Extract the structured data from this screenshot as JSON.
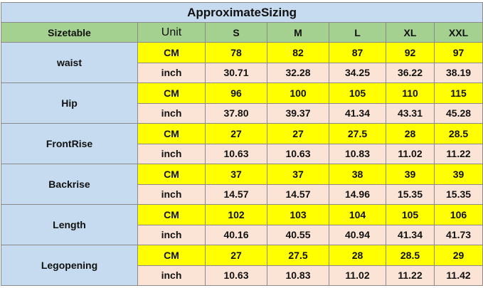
{
  "title": "ApproximateSizing",
  "table": {
    "header": [
      "Sizetable",
      "Unit",
      "S",
      "M",
      "L",
      "XL",
      "XXL"
    ],
    "rows": [
      {
        "label": "waist",
        "lines": [
          {
            "unit": "CM",
            "values": [
              "78",
              "82",
              "87",
              "92",
              "97"
            ]
          },
          {
            "unit": "inch",
            "values": [
              "30.71",
              "32.28",
              "34.25",
              "36.22",
              "38.19"
            ]
          }
        ]
      },
      {
        "label": "Hip",
        "lines": [
          {
            "unit": "CM",
            "values": [
              "96",
              "100",
              "105",
              "110",
              "115"
            ]
          },
          {
            "unit": "inch",
            "values": [
              "37.80",
              "39.37",
              "41.34",
              "43.31",
              "45.28"
            ]
          }
        ]
      },
      {
        "label": "FrontRise",
        "lines": [
          {
            "unit": "CM",
            "values": [
              "27",
              "27",
              "27.5",
              "28",
              "28.5"
            ]
          },
          {
            "unit": "inch",
            "values": [
              "10.63",
              "10.63",
              "10.83",
              "11.02",
              "11.22"
            ]
          }
        ]
      },
      {
        "label": "Backrise",
        "lines": [
          {
            "unit": "CM",
            "values": [
              "37",
              "37",
              "38",
              "39",
              "39"
            ]
          },
          {
            "unit": "inch",
            "values": [
              "14.57",
              "14.57",
              "14.96",
              "15.35",
              "15.35"
            ]
          }
        ]
      },
      {
        "label": "Length",
        "lines": [
          {
            "unit": "CM",
            "values": [
              "102",
              "103",
              "104",
              "105",
              "106"
            ]
          },
          {
            "unit": "inch",
            "values": [
              "40.16",
              "40.55",
              "40.94",
              "41.34",
              "41.73"
            ]
          }
        ]
      },
      {
        "label": "Legopening",
        "lines": [
          {
            "unit": "CM",
            "values": [
              "27",
              "27.5",
              "28",
              "28.5",
              "29"
            ]
          },
          {
            "unit": "inch",
            "values": [
              "10.63",
              "10.83",
              "11.02",
              "11.22",
              "11.42"
            ]
          }
        ]
      }
    ]
  }
}
